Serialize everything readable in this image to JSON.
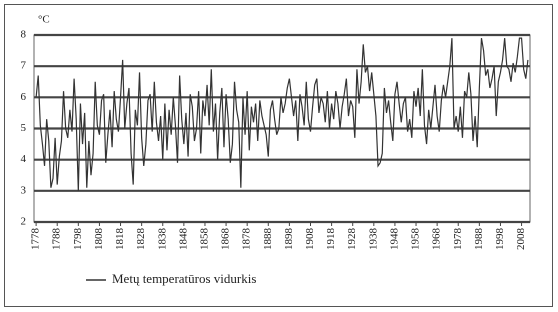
{
  "chart_data": {
    "type": "line",
    "y_unit": "°C",
    "x": [
      1778,
      1779,
      1780,
      1781,
      1782,
      1783,
      1784,
      1785,
      1786,
      1787,
      1788,
      1789,
      1790,
      1791,
      1792,
      1793,
      1794,
      1795,
      1796,
      1797,
      1798,
      1799,
      1800,
      1801,
      1802,
      1803,
      1804,
      1805,
      1806,
      1807,
      1808,
      1809,
      1810,
      1811,
      1812,
      1813,
      1814,
      1815,
      1816,
      1817,
      1818,
      1819,
      1820,
      1821,
      1822,
      1823,
      1824,
      1825,
      1826,
      1827,
      1828,
      1829,
      1830,
      1831,
      1832,
      1833,
      1834,
      1835,
      1836,
      1837,
      1838,
      1839,
      1840,
      1841,
      1842,
      1843,
      1844,
      1845,
      1846,
      1847,
      1848,
      1849,
      1850,
      1851,
      1852,
      1853,
      1854,
      1855,
      1856,
      1857,
      1858,
      1859,
      1860,
      1861,
      1862,
      1863,
      1864,
      1865,
      1866,
      1867,
      1868,
      1869,
      1870,
      1871,
      1872,
      1873,
      1874,
      1875,
      1876,
      1877,
      1878,
      1879,
      1880,
      1881,
      1882,
      1883,
      1884,
      1885,
      1886,
      1887,
      1888,
      1889,
      1890,
      1891,
      1892,
      1893,
      1894,
      1895,
      1896,
      1897,
      1898,
      1899,
      1900,
      1901,
      1902,
      1903,
      1904,
      1905,
      1906,
      1907,
      1908,
      1909,
      1910,
      1911,
      1912,
      1913,
      1914,
      1915,
      1916,
      1917,
      1918,
      1919,
      1920,
      1921,
      1922,
      1923,
      1924,
      1925,
      1926,
      1927,
      1928,
      1929,
      1930,
      1931,
      1932,
      1933,
      1934,
      1935,
      1936,
      1937,
      1938,
      1939,
      1940,
      1941,
      1942,
      1943,
      1944,
      1945,
      1946,
      1947,
      1948,
      1949,
      1950,
      1951,
      1952,
      1953,
      1954,
      1955,
      1956,
      1957,
      1958,
      1959,
      1960,
      1961,
      1962,
      1963,
      1964,
      1965,
      1966,
      1967,
      1968,
      1969,
      1970,
      1971,
      1972,
      1973,
      1974,
      1975,
      1976,
      1977,
      1978,
      1979,
      1980,
      1981,
      1982,
      1983,
      1984,
      1985,
      1986,
      1987,
      1988,
      1989,
      1990,
      1991,
      1992,
      1993,
      1994,
      1995,
      1996,
      1997,
      1998,
      1999,
      2000,
      2001,
      2002,
      2003,
      2004,
      2005,
      2006,
      2007,
      2008,
      2009,
      2010,
      2011
    ],
    "series": [
      {
        "name": "Metų temperatūros vidurkis",
        "color": "#333333",
        "values": [
          6.0,
          6.7,
          5.1,
          4.5,
          3.8,
          5.3,
          4.6,
          3.1,
          3.4,
          4.7,
          3.2,
          4.1,
          4.6,
          6.2,
          5.0,
          4.7,
          5.6,
          4.9,
          6.6,
          5.3,
          3.0,
          5.8,
          4.5,
          5.5,
          3.1,
          4.6,
          3.5,
          4.2,
          6.5,
          5.1,
          4.8,
          5.9,
          6.1,
          3.9,
          4.8,
          5.6,
          4.4,
          6.2,
          5.3,
          4.9,
          6.0,
          7.2,
          5.0,
          5.8,
          6.3,
          4.2,
          3.2,
          5.6,
          5.1,
          6.8,
          4.7,
          3.8,
          4.5,
          5.9,
          6.1,
          4.9,
          6.5,
          5.2,
          4.6,
          5.4,
          4.0,
          5.8,
          4.3,
          5.6,
          4.8,
          6.0,
          5.1,
          3.9,
          6.7,
          5.3,
          4.5,
          5.5,
          4.1,
          6.1,
          5.7,
          4.6,
          5.0,
          6.2,
          4.2,
          5.9,
          5.4,
          6.4,
          5.1,
          6.9,
          4.9,
          5.8,
          4.0,
          5.5,
          6.3,
          4.4,
          6.1,
          5.3,
          3.9,
          4.5,
          6.5,
          5.6,
          5.2,
          3.1,
          6.0,
          4.8,
          6.2,
          4.3,
          5.7,
          5.2,
          5.8,
          4.6,
          5.9,
          5.4,
          5.1,
          4.8,
          4.1,
          5.6,
          5.9,
          5.3,
          4.8,
          5.0,
          6.0,
          5.5,
          5.8,
          6.3,
          6.6,
          6.0,
          5.4,
          5.9,
          4.6,
          6.1,
          5.7,
          5.1,
          6.5,
          5.3,
          4.9,
          5.7,
          6.4,
          6.6,
          5.5,
          6.0,
          5.8,
          5.2,
          6.2,
          5.0,
          5.8,
          5.3,
          6.2,
          5.8,
          5.0,
          5.7,
          6.1,
          6.6,
          5.4,
          5.9,
          5.7,
          4.7,
          6.9,
          5.8,
          6.5,
          7.7,
          6.8,
          7.0,
          6.2,
          6.8,
          6.1,
          5.4,
          3.8,
          3.9,
          4.2,
          6.3,
          5.5,
          5.9,
          5.2,
          4.6,
          6.1,
          6.5,
          5.8,
          5.2,
          5.8,
          6.0,
          4.9,
          5.3,
          4.7,
          6.2,
          5.7,
          6.3,
          5.4,
          6.9,
          5.1,
          4.5,
          5.6,
          5.0,
          5.7,
          6.4,
          5.4,
          4.9,
          5.9,
          6.4,
          6.0,
          6.5,
          7.0,
          7.9,
          5.0,
          5.4,
          4.9,
          5.7,
          4.7,
          6.2,
          6.0,
          6.8,
          6.1,
          4.6,
          5.4,
          4.4,
          6.3,
          7.9,
          7.5,
          6.7,
          6.9,
          6.3,
          6.6,
          7.0,
          5.4,
          6.5,
          6.8,
          7.2,
          7.9,
          7.0,
          6.9,
          6.5,
          7.1,
          6.8,
          7.3,
          7.9,
          7.9,
          6.9,
          6.6,
          7.2
        ]
      }
    ],
    "xlim": [
      1777,
      2012
    ],
    "xticks": [
      1778,
      1788,
      1798,
      1808,
      1818,
      1828,
      1838,
      1848,
      1858,
      1868,
      1878,
      1888,
      1898,
      1908,
      1918,
      1928,
      1938,
      1948,
      1958,
      1968,
      1978,
      1988,
      1998,
      2008
    ],
    "ylim": [
      2,
      8
    ],
    "yticks": [
      2,
      3,
      4,
      5,
      6,
      7,
      8
    ],
    "grid": true
  }
}
